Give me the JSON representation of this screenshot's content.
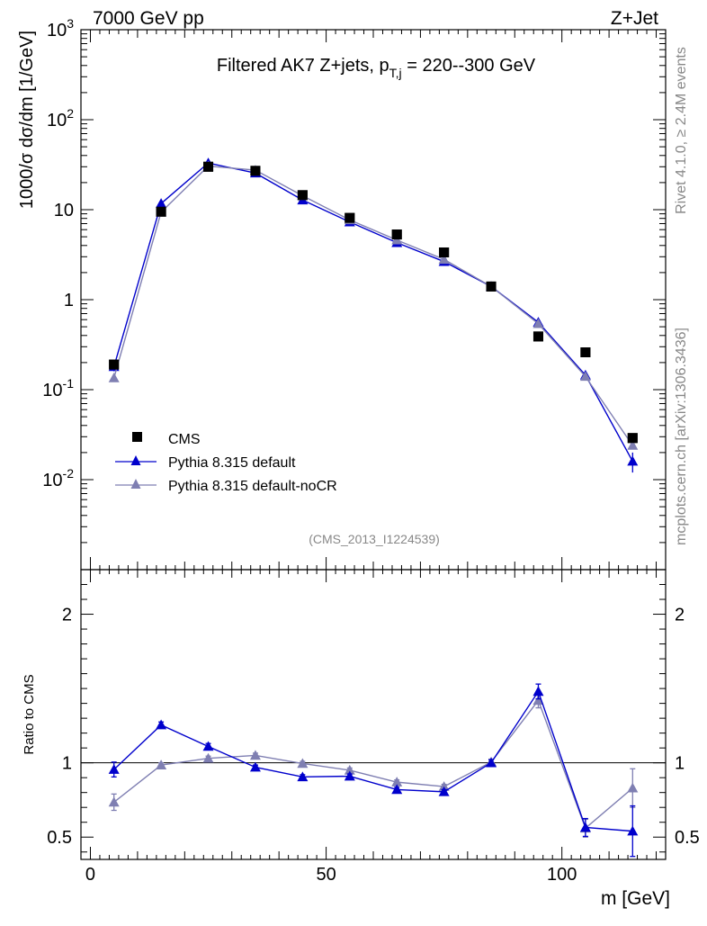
{
  "header": {
    "energy_label": "7000 GeV pp",
    "process_label": "Z+Jet"
  },
  "side_labels": {
    "rivet": "Rivet 4.1.0, ≥ 2.4M events",
    "mcplots": "mcplots.cern.ch [arXiv:1306.3436]"
  },
  "chart_data": [
    {
      "type": "line",
      "title": "Filtered AK7 Z+jets, pT,j = 220--300 GeV",
      "title_parts": {
        "prefix": "Filtered AK7 Z+jets, p",
        "subscript": "T,j",
        "suffix": " = 220--300 GeV"
      },
      "analysis_tag": "(CMS_2013_I1224539)",
      "ylabel": "1000/σ  dσ/dm [1/GeV]",
      "yscale": "log",
      "ylim": [
        0.001,
        1000
      ],
      "xlim": [
        -2,
        122
      ],
      "ytick_labels": [
        "10^-2",
        "10^-1",
        "1",
        "10",
        "10^2",
        "10^3"
      ],
      "x": [
        5,
        15,
        25,
        35,
        45,
        55,
        65,
        75,
        85,
        95,
        105,
        115
      ],
      "series": [
        {
          "name": "CMS",
          "marker": "square",
          "color": "#000000",
          "values": [
            0.19,
            9.5,
            30,
            27,
            14.5,
            8.1,
            5.3,
            3.35,
            1.4,
            0.39,
            0.26,
            0.029
          ]
        },
        {
          "name": "Pythia 8.315 default",
          "marker": "triangle",
          "color": "#0000cc",
          "values": [
            0.18,
            11.7,
            33,
            25.5,
            12.8,
            7.3,
            4.3,
            2.65,
            1.4,
            0.56,
            0.145,
            0.016
          ],
          "errors": [
            0.02,
            0.3,
            0.5,
            0.4,
            0.3,
            0.2,
            0.1,
            0.06,
            0.03,
            0.02,
            0.008,
            0.004
          ]
        },
        {
          "name": "Pythia 8.315 default-noCR",
          "marker": "triangle",
          "color": "#7f7fb2",
          "values": [
            0.135,
            9.4,
            30.5,
            27.5,
            14.3,
            7.7,
            4.6,
            2.8,
            1.4,
            0.54,
            0.14,
            0.024
          ]
        }
      ],
      "legend": [
        "CMS",
        "Pythia 8.315 default",
        "Pythia 8.315 default-noCR"
      ],
      "legend_placement": "bottom-left"
    },
    {
      "type": "line",
      "ylabel": "Ratio to CMS",
      "xlabel": "m [GeV]",
      "ylim": [
        0.35,
        2.3
      ],
      "xlim": [
        -2,
        122
      ],
      "yticks": [
        0.5,
        1,
        2
      ],
      "ytick_labels": [
        "0.5",
        "1",
        "2"
      ],
      "xticks": [
        0,
        50,
        100
      ],
      "xtick_labels": [
        "0",
        "50",
        "100"
      ],
      "reference_line": 1,
      "x": [
        5,
        15,
        25,
        35,
        45,
        55,
        65,
        75,
        85,
        95,
        105,
        115
      ],
      "series": [
        {
          "name": "Pythia 8.315 default",
          "color": "#0000cc",
          "values": [
            0.955,
            1.255,
            1.11,
            0.97,
            0.905,
            0.91,
            0.82,
            0.805,
            1.0,
            1.48,
            0.565,
            0.54
          ],
          "errors": [
            0.05,
            0.02,
            0.02,
            0.015,
            0.015,
            0.015,
            0.015,
            0.015,
            0.02,
            0.05,
            0.06,
            0.17
          ]
        },
        {
          "name": "Pythia 8.315 default-noCR",
          "color": "#7f7fb2",
          "values": [
            0.735,
            0.985,
            1.03,
            1.05,
            0.995,
            0.95,
            0.87,
            0.84,
            1.005,
            1.42,
            0.56,
            0.83
          ],
          "errors": [
            0.055,
            0.015,
            0.015,
            0.015,
            0.015,
            0.015,
            0.015,
            0.015,
            0.02,
            0.05,
            0.06,
            0.13
          ]
        }
      ]
    }
  ]
}
